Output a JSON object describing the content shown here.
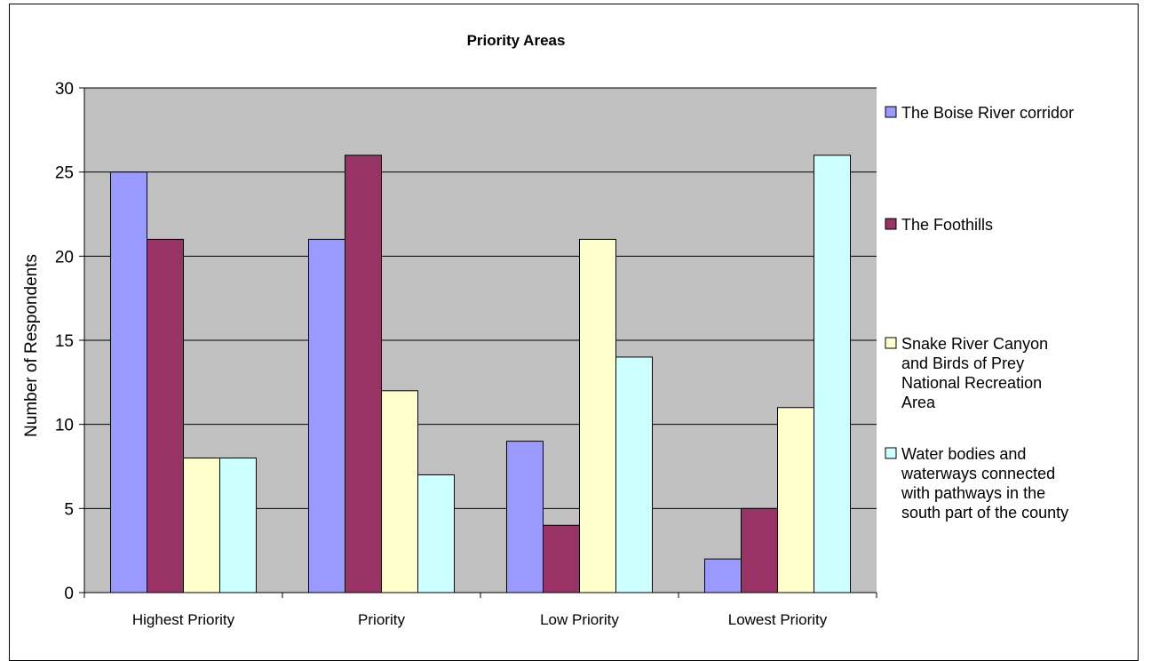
{
  "chart_data": {
    "type": "bar",
    "title": "Priority Areas",
    "xlabel": "",
    "ylabel": "Number of Respondents",
    "ylim": [
      0,
      30
    ],
    "ytick_step": 5,
    "grid": true,
    "legend_position": "right",
    "categories": [
      "Highest Priority",
      "Priority",
      "Low Priority",
      "Lowest Priority"
    ],
    "series": [
      {
        "name": "The Boise River corridor",
        "values": [
          25,
          21,
          9,
          2
        ],
        "color": "#9999ff"
      },
      {
        "name": "The Foothills",
        "values": [
          21,
          26,
          4,
          5
        ],
        "color": "#993366"
      },
      {
        "name": "Snake River Canyon and Birds of Prey National Recreation Area",
        "values": [
          8,
          12,
          21,
          11
        ],
        "color": "#ffffcc"
      },
      {
        "name": "Water bodies and waterways connected with pathways in the south part of the county",
        "values": [
          8,
          7,
          14,
          26
        ],
        "color": "#ccffff"
      }
    ],
    "legend_lines": [
      [
        "The Boise River corridor"
      ],
      [
        "The Foothills"
      ],
      [
        "Snake River Canyon",
        "and Birds of Prey",
        "National Recreation",
        "Area"
      ],
      [
        "Water bodies and",
        "waterways connected",
        "with pathways in the",
        "south part of the county"
      ]
    ],
    "plot_background": "#c0c0c0"
  }
}
